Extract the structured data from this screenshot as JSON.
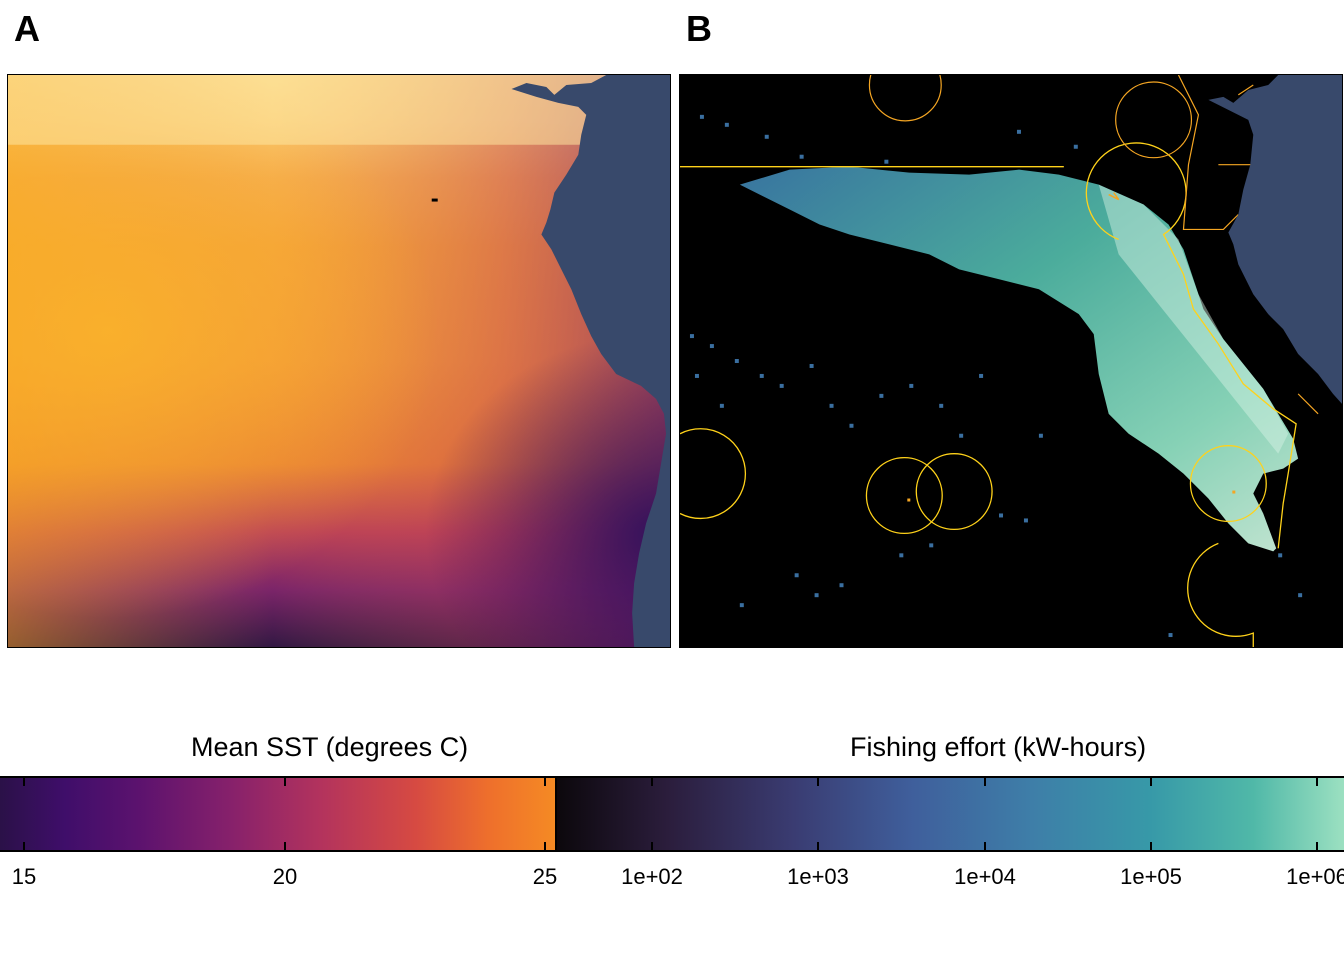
{
  "panels": {
    "a": {
      "letter": "A"
    },
    "b": {
      "letter": "B"
    }
  },
  "colors": {
    "land": "#38496b",
    "eez_boundary": "#ffd21a",
    "country_boundary": "#f5a623",
    "ocean_background_b": "#000000"
  },
  "legend": {
    "sst": {
      "title": "Mean SST (degrees C)",
      "ticks": [
        "15",
        "20",
        "25"
      ],
      "palette": "inferno"
    },
    "effort": {
      "title": "Fishing effort (kW-hours)",
      "ticks": [
        "1e+02",
        "1e+03",
        "1e+04",
        "1e+05",
        "1e+06"
      ],
      "palette": "mako"
    }
  }
}
